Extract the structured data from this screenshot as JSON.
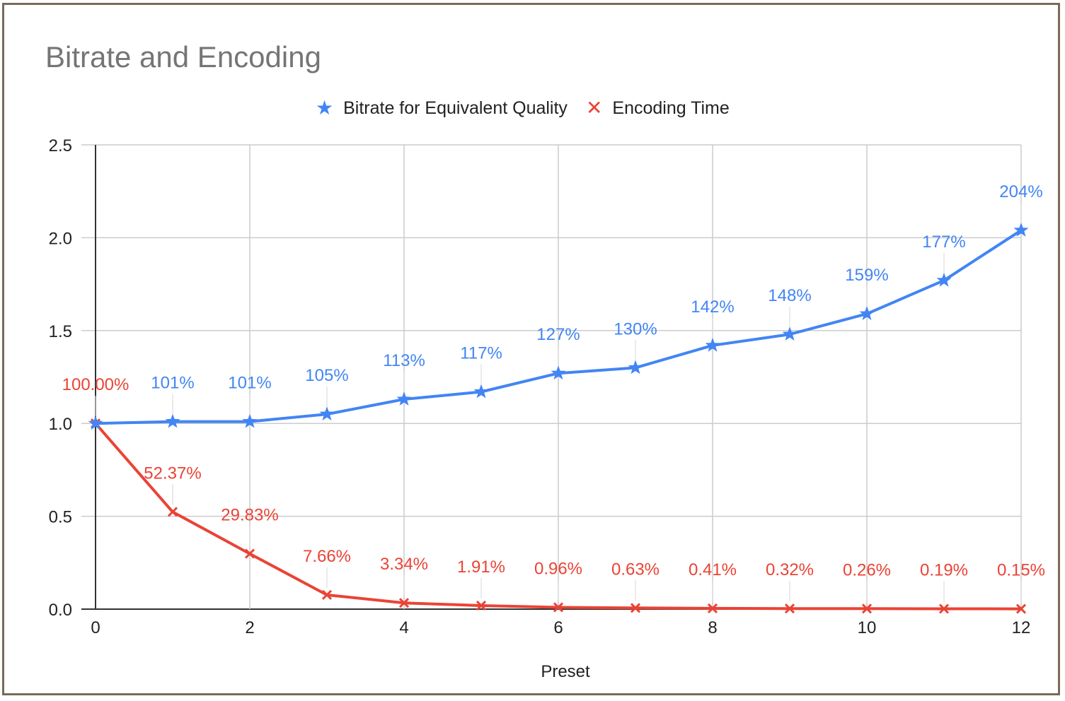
{
  "chart_data": {
    "type": "line",
    "title": "Bitrate and Encoding",
    "xlabel": "Preset",
    "ylabel": "",
    "x": [
      0,
      1,
      2,
      3,
      4,
      5,
      6,
      7,
      8,
      9,
      10,
      11,
      12
    ],
    "xticks": [
      "0",
      "2",
      "4",
      "6",
      "8",
      "10",
      "12"
    ],
    "xlim": [
      0,
      12
    ],
    "yticks": [
      "0.0",
      "0.5",
      "1.0",
      "1.5",
      "2.0",
      "2.5"
    ],
    "ylim": [
      0,
      2.5
    ],
    "grid": true,
    "legend_position": "top",
    "series": [
      {
        "name": "Bitrate for Equivalent Quality",
        "color": "#4285f4",
        "marker": "star",
        "values": [
          1.0,
          1.01,
          1.01,
          1.05,
          1.13,
          1.17,
          1.27,
          1.3,
          1.42,
          1.48,
          1.59,
          1.77,
          2.04
        ],
        "labels": [
          "",
          "101%",
          "101%",
          "105%",
          "113%",
          "117%",
          "127%",
          "130%",
          "142%",
          "148%",
          "159%",
          "177%",
          "204%"
        ]
      },
      {
        "name": "Encoding Time",
        "color": "#ea4335",
        "marker": "x",
        "values": [
          1.0,
          0.5237,
          0.2983,
          0.0766,
          0.0334,
          0.0191,
          0.0096,
          0.0063,
          0.0041,
          0.0032,
          0.0026,
          0.0019,
          0.0015
        ],
        "labels": [
          "100.00%",
          "52.37%",
          "29.83%",
          "7.66%",
          "3.34%",
          "1.91%",
          "0.96%",
          "0.63%",
          "0.41%",
          "0.32%",
          "0.26%",
          "0.19%",
          "0.15%"
        ]
      }
    ]
  }
}
